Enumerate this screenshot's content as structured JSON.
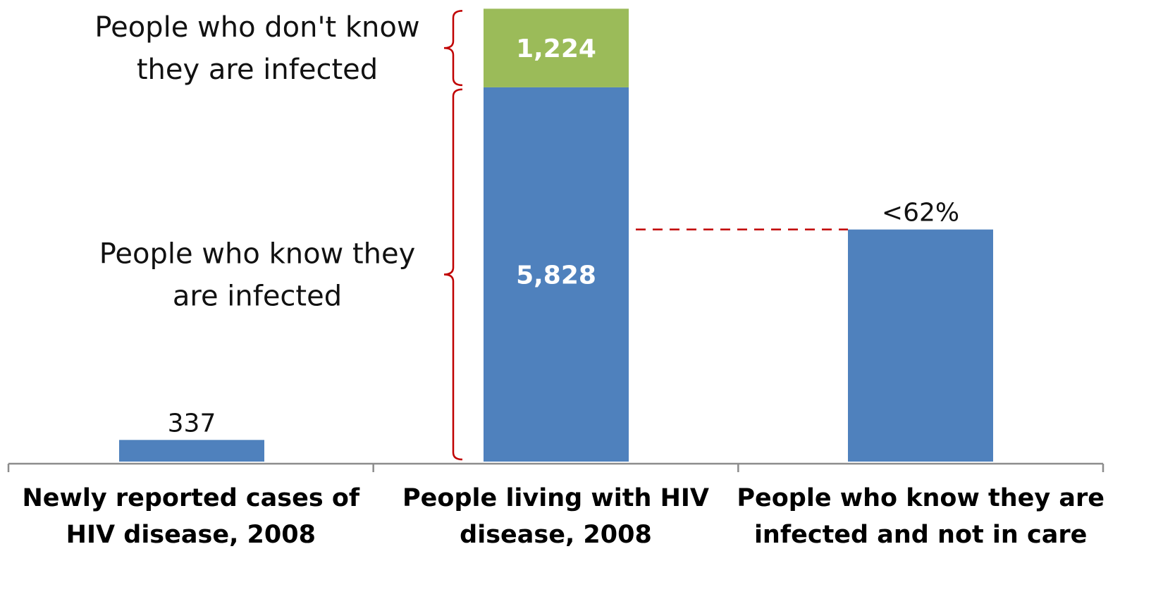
{
  "chart_data": {
    "type": "bar",
    "stacked": true,
    "title": "",
    "xlabel": "",
    "ylabel": "",
    "ylim": [
      0,
      7100
    ],
    "grid": false,
    "categories": [
      {
        "lines": [
          "Newly reported cases  of",
          "HIV disease, 2008"
        ]
      },
      {
        "lines": [
          "People living  with HIV",
          "disease, 2008"
        ]
      },
      {
        "lines": [
          "People who know  they are",
          "infected and  not in care"
        ]
      }
    ],
    "bars": [
      {
        "segments": [
          {
            "value": 337,
            "label": "337",
            "color": "#4f81bd",
            "label_position": "above"
          }
        ]
      },
      {
        "segments": [
          {
            "value": 5828,
            "label": "5,828",
            "color": "#4f81bd",
            "label_position": "inside"
          },
          {
            "value": 1224,
            "label": "1,224",
            "color": "#9bbb59",
            "label_position": "inside"
          }
        ]
      },
      {
        "segments": [
          {
            "value": 3614,
            "label": "<62%",
            "color": "#4f81bd",
            "label_position": "above"
          }
        ]
      }
    ],
    "annotations": [
      {
        "lines": [
          "People who don't know",
          "they are infected"
        ],
        "brace_bar": 1,
        "brace_segment": 1
      },
      {
        "lines": [
          "People who know they",
          "are infected"
        ],
        "brace_bar": 1,
        "brace_segment": 0
      }
    ],
    "reference_line": {
      "from_bar": 1,
      "to_bar": 2,
      "value": 3614,
      "style": "dashed",
      "color": "#c00000"
    },
    "brace_color": "#c00000",
    "axis_color": "#8c8c8c"
  }
}
